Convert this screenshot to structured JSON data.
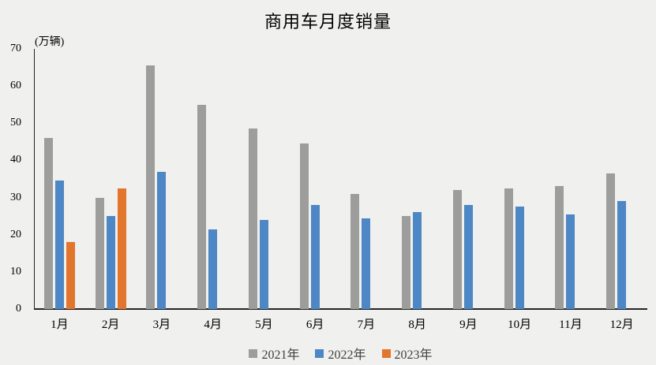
{
  "title": "商用车月度销量",
  "unit_label": "(万辆)",
  "colors": {
    "background": "#f0f0ee",
    "axis": "#262626",
    "text": "#000000",
    "series_2021": "#9d9d9c",
    "series_2022": "#4e87c5",
    "series_2023": "#e2762d"
  },
  "chart_data": {
    "type": "bar",
    "title": "商用车月度销量",
    "ylabel": "(万辆)",
    "xlabel": "",
    "ylim": [
      0,
      70
    ],
    "yticks": [
      0,
      10,
      20,
      30,
      40,
      50,
      60,
      70
    ],
    "grid": false,
    "legend_position": "bottom",
    "categories": [
      "1月",
      "2月",
      "3月",
      "4月",
      "5月",
      "6月",
      "7月",
      "8月",
      "9月",
      "10月",
      "11月",
      "12月"
    ],
    "series": [
      {
        "name": "2021年",
        "color": "#9d9d9c",
        "values": [
          46,
          30,
          65.5,
          55,
          48.5,
          44.5,
          31,
          25,
          32,
          32.5,
          33,
          36.5
        ]
      },
      {
        "name": "2022年",
        "color": "#4e87c5",
        "values": [
          34.5,
          25,
          37,
          21.5,
          24,
          28,
          24.5,
          26,
          28,
          27.5,
          25.5,
          29
        ]
      },
      {
        "name": "2023年",
        "color": "#e2762d",
        "values": [
          18,
          32.5,
          null,
          null,
          null,
          null,
          null,
          null,
          null,
          null,
          null,
          null
        ]
      }
    ]
  }
}
